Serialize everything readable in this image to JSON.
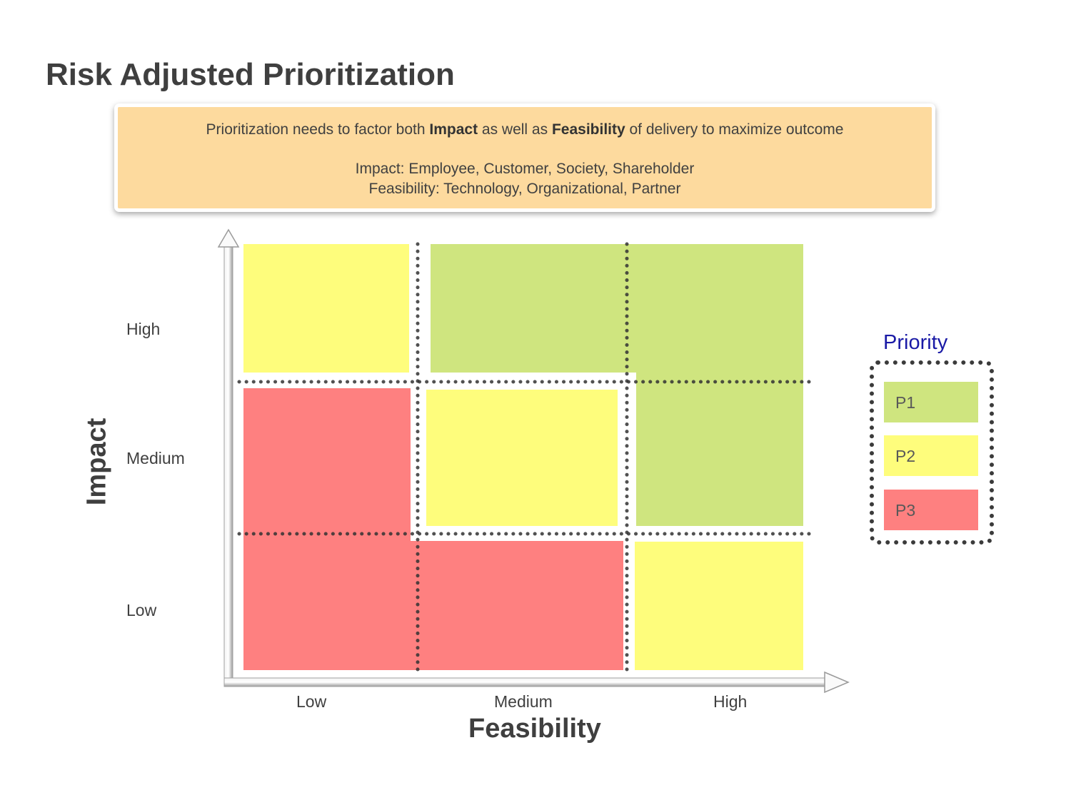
{
  "title": "Risk Adjusted Prioritization",
  "banner": {
    "line1": {
      "pre": "Prioritization needs to factor both ",
      "bold1": "Impact",
      "mid": " as well as ",
      "bold2": "Feasibility",
      "post": " of delivery to maximize outcome"
    },
    "line2": "Impact: Employee, Customer, Society, Shareholder",
    "line3": "Feasibility: Technology, Organizational, Partner"
  },
  "axes": {
    "y_title": "Impact",
    "x_title": "Feasibility",
    "y_labels": [
      "High",
      "Medium",
      "Low"
    ],
    "x_labels": [
      "Low",
      "Medium",
      "High"
    ]
  },
  "legend": {
    "title": "Priority",
    "items": [
      {
        "label": "P1",
        "color": "#cfe57f"
      },
      {
        "label": "P2",
        "color": "#fefd7c"
      },
      {
        "label": "P3",
        "color": "#fe8080"
      }
    ]
  },
  "matrix": {
    "rows": [
      "High",
      "Medium",
      "Low"
    ],
    "cols": [
      "Low",
      "Medium",
      "High"
    ],
    "priority": [
      [
        "P2",
        "P1",
        "P1"
      ],
      [
        "P3",
        "P2",
        "P1"
      ],
      [
        "P3",
        "P3",
        "P2"
      ]
    ]
  }
}
